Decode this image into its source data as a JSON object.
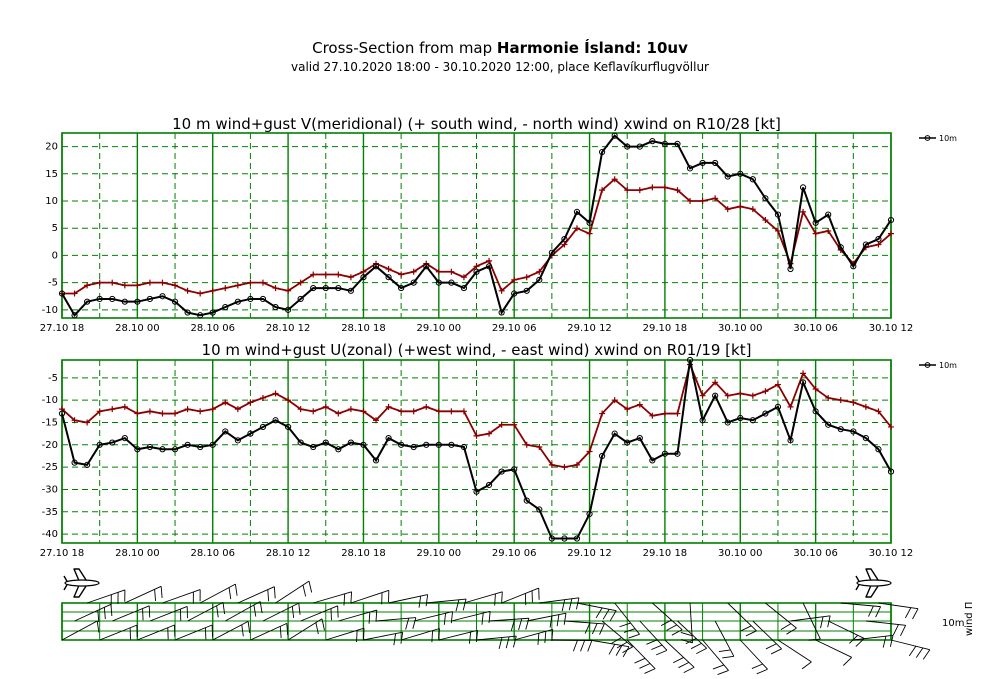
{
  "header": {
    "title_prefix": "Cross-Section from map ",
    "title_bold": "Harmonie Ísland: 10uv",
    "subtitle": "valid 27.10.2020 18:00 - 30.10.2020 12:00, place Keflavíkurflugvöllur"
  },
  "colors": {
    "frame": "#008000",
    "grid": "#008000",
    "series_10m": "#000000",
    "series_gust": "#8b0000",
    "barb": "#000000"
  },
  "icons": [
    "airplane-icon"
  ],
  "x_tick_labels": [
    "27.10 18",
    "28.10 00",
    "28.10 06",
    "28.10 12",
    "28.10 18",
    "29.10 00",
    "29.10 06",
    "29.10 12",
    "29.10 18",
    "30.10 00",
    "30.10 06",
    "30.10 12"
  ],
  "legend_label": "10m",
  "barb_panel": {
    "label_10m": "10m",
    "label_wind": "wind Π"
  },
  "chart_data": [
    {
      "type": "line",
      "title": "10 m wind+gust V(meridional) (+ south wind, - north wind) xwind on R10/28 [kt]",
      "xlabel": "",
      "ylabel": "",
      "x_start": "27.10.2020 18:00",
      "x_step_hours": 1,
      "ylim": [
        -11.5,
        22.5
      ],
      "yticks": [
        -10,
        -5,
        0,
        5,
        10,
        15,
        20
      ],
      "grid": true,
      "legend_position": "top-right",
      "series": [
        {
          "name": "10m",
          "marker": "circle",
          "values": [
            -7.0,
            -11.0,
            -8.5,
            -8.0,
            -8.0,
            -8.5,
            -8.5,
            -8.0,
            -7.5,
            -8.5,
            -10.5,
            -11.0,
            -10.5,
            -9.5,
            -8.5,
            -8.0,
            -8.0,
            -9.5,
            -10.0,
            -8.0,
            -6.0,
            -6.0,
            -6.0,
            -6.5,
            -4.0,
            -2.0,
            -4.0,
            -6.0,
            -5.0,
            -2.0,
            -5.0,
            -5.0,
            -6.0,
            -3.0,
            -2.0,
            -10.5,
            -7.0,
            -6.5,
            -4.5,
            0.5,
            3.0,
            8.0,
            6.0,
            19.0,
            22.0,
            20.0,
            20.0,
            21.0,
            20.5,
            20.5,
            16.0,
            17.0,
            17.0,
            14.5,
            15.0,
            14.0,
            10.5,
            7.5,
            -2.5,
            12.5,
            6.0,
            7.5,
            1.5,
            -2.0,
            2.0,
            3.0,
            6.5
          ]
        },
        {
          "name": "",
          "marker": "cross",
          "values": [
            -7.0,
            -7.0,
            -5.5,
            -5.0,
            -5.0,
            -5.5,
            -5.5,
            -5.0,
            -5.0,
            -5.5,
            -6.5,
            -7.0,
            -6.5,
            -6.0,
            -5.5,
            -5.0,
            -5.0,
            -6.0,
            -6.5,
            -5.0,
            -3.5,
            -3.5,
            -3.5,
            -4.0,
            -3.0,
            -1.5,
            -2.5,
            -3.5,
            -3.0,
            -1.5,
            -3.0,
            -3.0,
            -4.0,
            -2.0,
            -1.0,
            -6.5,
            -4.5,
            -4.0,
            -3.0,
            0.0,
            2.0,
            5.0,
            4.0,
            12.0,
            14.0,
            12.0,
            12.0,
            12.5,
            12.5,
            12.0,
            10.0,
            10.0,
            10.5,
            8.5,
            9.0,
            8.5,
            6.5,
            4.5,
            -1.5,
            8.0,
            4.0,
            4.5,
            1.0,
            -1.5,
            1.5,
            2.0,
            4.0
          ]
        }
      ]
    },
    {
      "type": "line",
      "title": "10 m wind+gust U(zonal) (+west wind, - east wind) xwind on R01/19 [kt]",
      "xlabel": "",
      "ylabel": "",
      "x_start": "27.10.2020 18:00",
      "x_step_hours": 1,
      "ylim": [
        -42,
        -1
      ],
      "yticks": [
        -40,
        -35,
        -30,
        -25,
        -20,
        -15,
        -10,
        -5
      ],
      "grid": true,
      "legend_position": "top-right",
      "series": [
        {
          "name": "10m",
          "marker": "circle",
          "values": [
            -13.0,
            -24.0,
            -24.5,
            -20.0,
            -19.5,
            -18.5,
            -21.0,
            -20.5,
            -21.0,
            -21.0,
            -20.0,
            -20.5,
            -20.0,
            -17.0,
            -19.0,
            -17.5,
            -16.0,
            -14.5,
            -16.0,
            -19.5,
            -20.5,
            -19.5,
            -21.0,
            -19.5,
            -20.0,
            -23.5,
            -18.5,
            -20.0,
            -20.5,
            -20.0,
            -20.0,
            -20.0,
            -20.5,
            -30.5,
            -29.0,
            -26.0,
            -25.5,
            -32.5,
            -34.5,
            -41.0,
            -41.0,
            -41.0,
            -35.5,
            -22.5,
            -17.5,
            -19.5,
            -18.5,
            -23.5,
            -22.0,
            -22.0,
            -1.0,
            -14.5,
            -9.0,
            -15.0,
            -14.0,
            -14.5,
            -13.0,
            -11.5,
            -19.0,
            -6.0,
            -12.5,
            -15.5,
            -16.5,
            -17.0,
            -18.5,
            -21.0,
            -26.0
          ]
        },
        {
          "name": "",
          "marker": "cross",
          "values": [
            -12.0,
            -14.5,
            -15.0,
            -12.5,
            -12.0,
            -11.5,
            -13.0,
            -12.5,
            -13.0,
            -13.0,
            -12.0,
            -12.5,
            -12.0,
            -10.5,
            -12.0,
            -10.5,
            -9.5,
            -8.5,
            -10.0,
            -12.0,
            -12.5,
            -11.5,
            -13.0,
            -12.0,
            -12.5,
            -14.5,
            -11.5,
            -12.5,
            -12.5,
            -11.5,
            -12.5,
            -12.5,
            -12.5,
            -18.0,
            -17.5,
            -15.5,
            -15.5,
            -20.0,
            -20.5,
            -24.5,
            -25.0,
            -24.5,
            -21.5,
            -13.0,
            -10.0,
            -12.0,
            -11.0,
            -13.5,
            -13.0,
            -13.0,
            -2.0,
            -9.0,
            -6.0,
            -9.0,
            -8.5,
            -9.0,
            -8.0,
            -6.5,
            -11.5,
            -4.0,
            -7.5,
            -9.5,
            -10.0,
            -10.5,
            -11.5,
            -12.5,
            -16.0
          ]
        }
      ]
    }
  ]
}
